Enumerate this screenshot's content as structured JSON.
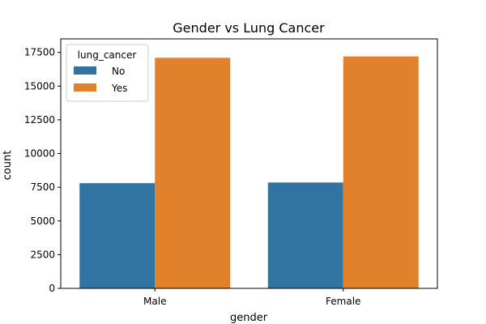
{
  "chart_data": {
    "type": "bar",
    "title": "Gender vs Lung Cancer",
    "xlabel": "gender",
    "ylabel": "count",
    "categories": [
      "Male",
      "Female"
    ],
    "series": [
      {
        "name": "No",
        "values": [
          7800,
          7850
        ],
        "color": "#3274a1"
      },
      {
        "name": "Yes",
        "values": [
          17100,
          17200
        ],
        "color": "#e1812c"
      }
    ],
    "ylim": [
      0,
      18500
    ],
    "yticks": [
      0,
      2500,
      5000,
      7500,
      10000,
      12500,
      15000,
      17500
    ],
    "legend": {
      "title": "lung_cancer",
      "placement": "top-left"
    },
    "grid": false
  }
}
